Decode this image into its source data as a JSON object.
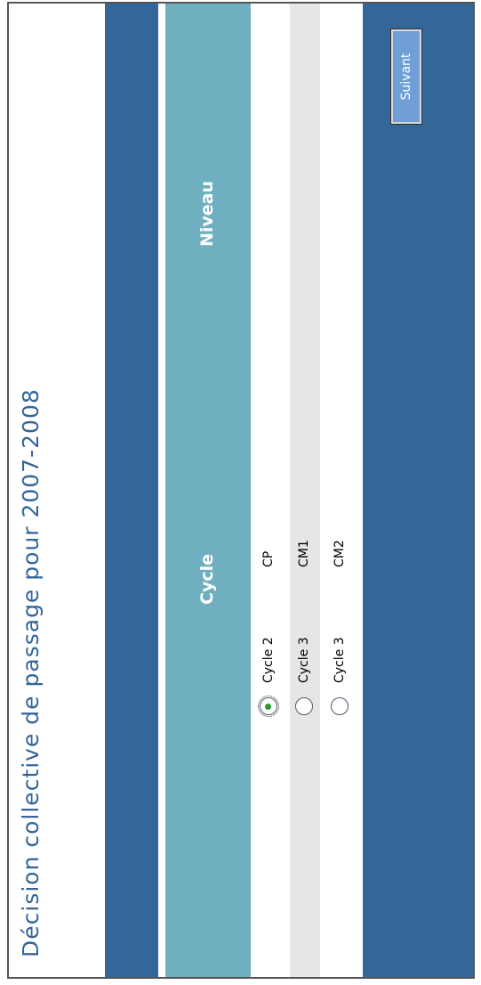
{
  "page": {
    "title": "Décision collective de passage pour 2007-2008"
  },
  "table": {
    "headers": {
      "cycle": "Cycle",
      "niveau": "Niveau"
    },
    "rows": [
      {
        "cycle": "Cycle 2",
        "niveau": "CP",
        "selected": true
      },
      {
        "cycle": "Cycle 3",
        "niveau": "CM1",
        "selected": false
      },
      {
        "cycle": "Cycle 3",
        "niveau": "CM2",
        "selected": false
      }
    ]
  },
  "actions": {
    "next_label": "Suivant"
  },
  "colors": {
    "primary": "#336699",
    "header": "#6fafbf",
    "button": "#6f9fd6"
  }
}
